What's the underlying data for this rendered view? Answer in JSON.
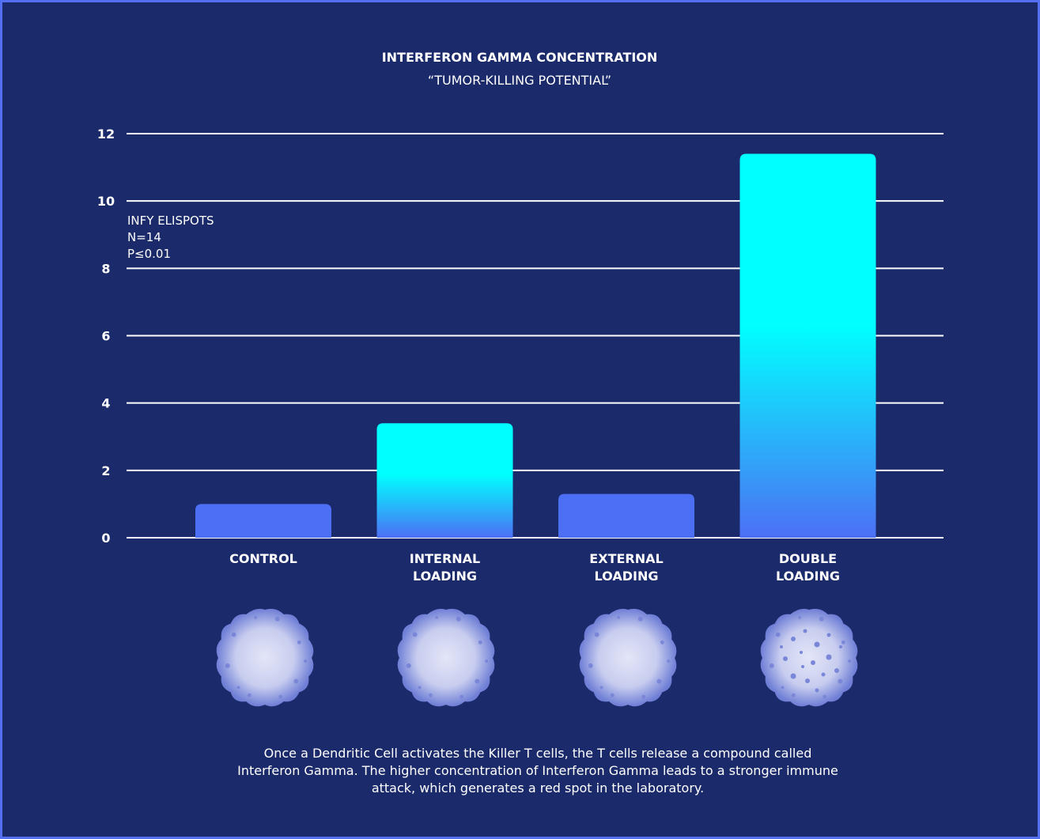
{
  "chart_data": {
    "type": "bar",
    "title": "INTERFERON GAMMA CONCENTRATION",
    "subtitle": "“TUMOR-KILLING POTENTIAL”",
    "annotation": [
      "INFY ELISPOTS",
      "N=14",
      "P≤0.01"
    ],
    "categories": [
      "CONTROL",
      "INTERNAL LOADING",
      "EXTERNAL LOADING",
      "DOUBLE LOADING"
    ],
    "values": [
      1.0,
      3.4,
      1.3,
      11.4
    ],
    "bar_colors": [
      [
        "#4d6ff5"
      ],
      [
        "#00ffff",
        "#4d6ff5"
      ],
      [
        "#4d6ff5"
      ],
      [
        "#00ffff",
        "#4d6ff5"
      ]
    ],
    "ylim": [
      0,
      12
    ],
    "yticks": [
      0,
      2,
      4,
      6,
      8,
      10,
      12
    ],
    "grid": true,
    "note": "Once a Dendritic Cell activates the Killer T cells, the T cells release a compound called Interferon Gamma. The higher concentration of Interferon Gamma leads to a stronger immune attack, which generates a red spot in the laboratory."
  }
}
